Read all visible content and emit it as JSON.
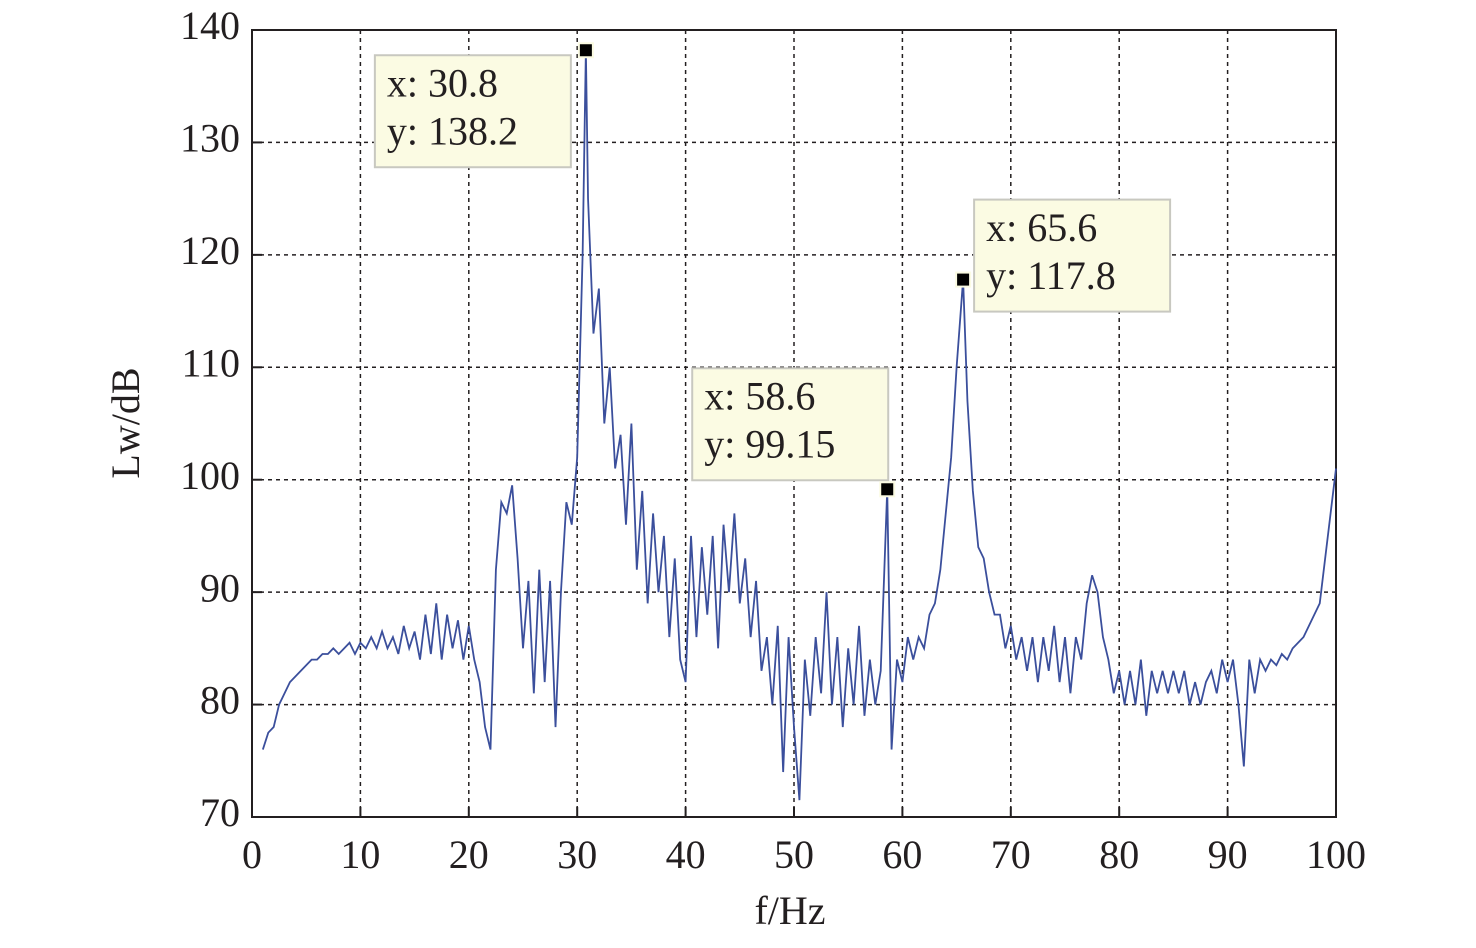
{
  "chart_data": {
    "type": "line",
    "xlabel": "f/Hz",
    "ylabel": "Lw/dB",
    "xlim": [
      0,
      100
    ],
    "ylim": [
      70,
      140
    ],
    "xticks": [
      0,
      10,
      20,
      30,
      40,
      50,
      60,
      70,
      80,
      90,
      100
    ],
    "yticks": [
      70,
      80,
      90,
      100,
      110,
      120,
      130,
      140
    ],
    "grid": true,
    "x": [
      1,
      1.5,
      2,
      2.5,
      3,
      3.5,
      4,
      4.5,
      5,
      5.5,
      6,
      6.5,
      7,
      7.5,
      8,
      8.5,
      9,
      9.5,
      10,
      10.5,
      11,
      11.5,
      12,
      12.5,
      13,
      13.5,
      14,
      14.5,
      15,
      15.5,
      16,
      16.5,
      17,
      17.5,
      18,
      18.5,
      19,
      19.5,
      20,
      20.5,
      21,
      21.5,
      22,
      22.5,
      23,
      23.5,
      24,
      24.5,
      25,
      25.5,
      26,
      26.5,
      27,
      27.5,
      28,
      28.5,
      29,
      29.5,
      30,
      30.5,
      30.8,
      31,
      31.5,
      32,
      32.5,
      33,
      33.5,
      34,
      34.5,
      35,
      35.5,
      36,
      36.5,
      37,
      37.5,
      38,
      38.5,
      39,
      39.5,
      40,
      40.5,
      41,
      41.5,
      42,
      42.5,
      43,
      43.5,
      44,
      44.5,
      45,
      45.5,
      46,
      46.5,
      47,
      47.5,
      48,
      48.5,
      49,
      49.5,
      50,
      50.5,
      51,
      51.5,
      52,
      52.5,
      53,
      53.5,
      54,
      54.5,
      55,
      55.5,
      56,
      56.5,
      57,
      57.5,
      58,
      58.6,
      59,
      59.5,
      60,
      60.5,
      61,
      61.5,
      62,
      62.5,
      63,
      63.5,
      64,
      64.5,
      65,
      65.6,
      66,
      66.5,
      67,
      67.5,
      68,
      68.5,
      69,
      69.5,
      70,
      70.5,
      71,
      71.5,
      72,
      72.5,
      73,
      73.5,
      74,
      74.5,
      75,
      75.5,
      76,
      76.5,
      77,
      77.5,
      78,
      78.5,
      79,
      79.5,
      80,
      80.5,
      81,
      81.5,
      82,
      82.5,
      83,
      83.5,
      84,
      84.5,
      85,
      85.5,
      86,
      86.5,
      87,
      87.5,
      88,
      88.5,
      89,
      89.5,
      90,
      90.5,
      91,
      91.5,
      92,
      92.5,
      93,
      93.5,
      94,
      94.5,
      95,
      95.5,
      96,
      96.5,
      97,
      97.5,
      98,
      98.5,
      99,
      99.5,
      100
    ],
    "series": [
      {
        "color": "#3b4f9c",
        "values": [
          76,
          77.5,
          78,
          80,
          81,
          82,
          82.5,
          83,
          83.5,
          84,
          84,
          84.5,
          84.5,
          85,
          84.5,
          85,
          85.5,
          84.5,
          85.5,
          85,
          86,
          85,
          86.5,
          85,
          86,
          84.5,
          87,
          85,
          86.5,
          84,
          88,
          84.5,
          89,
          84,
          88,
          85,
          87.5,
          84,
          87,
          84,
          82,
          78,
          76,
          92,
          98,
          97,
          99.5,
          93,
          85,
          91,
          81,
          92,
          82,
          91,
          78,
          90,
          98,
          96,
          102,
          120,
          138.2,
          125,
          113,
          117,
          105,
          110,
          101,
          104,
          96,
          105,
          92,
          99,
          89,
          97,
          90,
          95,
          86,
          93,
          84,
          82,
          95,
          86,
          94,
          88,
          95,
          85,
          96,
          90,
          97,
          89,
          93,
          86,
          91,
          83,
          86,
          80,
          87,
          74,
          86,
          78,
          71.5,
          84,
          79,
          86,
          81,
          90,
          80,
          86,
          78,
          85,
          80,
          87,
          79,
          84,
          80,
          83,
          99.15,
          76,
          84,
          82,
          86,
          84,
          86,
          85,
          88,
          89,
          92,
          97,
          102,
          110,
          117.8,
          107,
          99,
          94,
          93,
          90,
          88,
          88,
          85,
          87,
          84,
          86,
          83,
          86,
          82,
          86,
          83,
          87,
          82,
          86,
          81,
          86,
          84,
          89,
          91.5,
          90,
          86,
          84,
          81,
          83,
          80,
          83,
          80,
          84,
          79,
          83,
          81,
          83,
          81,
          83,
          81,
          83,
          80,
          82,
          80,
          82,
          83,
          81,
          84,
          82,
          84,
          80,
          74.5,
          84,
          81,
          84,
          83,
          84,
          83.5,
          84.5,
          84,
          85,
          85.5,
          86,
          87,
          88,
          89,
          93,
          97,
          101
        ]
      }
    ],
    "annotations": [
      {
        "x": 30.8,
        "y": 138.2,
        "x_label": "x: 30.8",
        "y_label": "y: 138.2"
      },
      {
        "x": 58.6,
        "y": 99.15,
        "x_label": "x: 58.6",
        "y_label": "y: 99.15"
      },
      {
        "x": 65.6,
        "y": 117.8,
        "x_label": "x: 65.6",
        "y_label": "y: 117.8"
      }
    ]
  }
}
